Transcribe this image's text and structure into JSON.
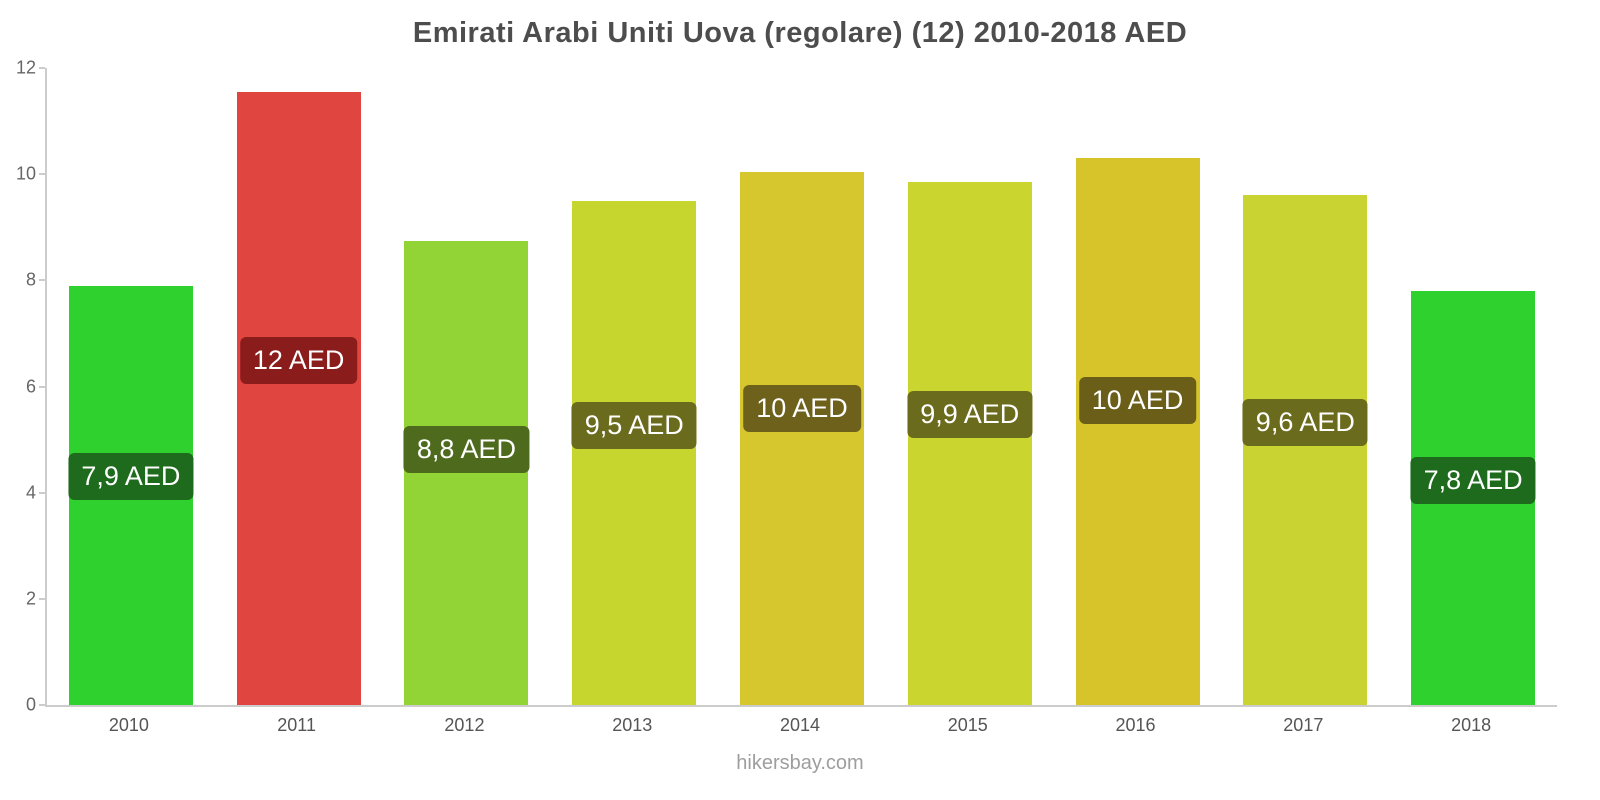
{
  "title": "Emirati Arabi Uniti Uova (regolare) (12) 2010-2018 AED",
  "footer": "hikersbay.com",
  "chart_data": {
    "type": "bar",
    "title": "Emirati Arabi Uniti Uova (regolare) (12) 2010-2018 AED",
    "xlabel": "",
    "ylabel": "",
    "ylim": [
      0,
      12
    ],
    "yticks": [
      0,
      2,
      4,
      6,
      8,
      10,
      12
    ],
    "grid": false,
    "legend": "none",
    "categories": [
      "2010",
      "2011",
      "2012",
      "2013",
      "2014",
      "2015",
      "2016",
      "2017",
      "2018"
    ],
    "values": [
      7.9,
      11.55,
      8.75,
      9.5,
      10.05,
      9.85,
      10.3,
      9.6,
      7.8
    ],
    "bar_labels": [
      "7,9 AED",
      "12 AED",
      "8,8 AED",
      "9,5 AED",
      "10 AED",
      "9,9 AED",
      "10 AED",
      "9,6 AED",
      "7,8 AED"
    ],
    "bar_colors": [
      "#2fd12f",
      "#e04540",
      "#92d435",
      "#c6d62f",
      "#d6c72f",
      "#cbd52f",
      "#d6c42a",
      "#c9d433",
      "#2fd12f"
    ],
    "label_bg_colors": [
      "#1e6b1e",
      "#8a1c1c",
      "#4e6b1d",
      "#6b6b1d",
      "#6e611c",
      "#6b6b1d",
      "#6b5e19",
      "#6b6b1d",
      "#1e6b1e"
    ],
    "axis_color": "#cccccc",
    "tick_label_color": "#666666",
    "x_label_color": "#555555",
    "title_color": "#4d4d4d",
    "footer_color": "#9e9e9e"
  }
}
